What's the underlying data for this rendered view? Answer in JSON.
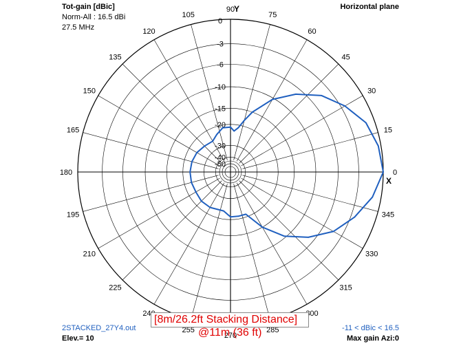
{
  "header": {
    "quantity": "Tot-gain [dBic]",
    "normalization": "Norm-All : 16.5 dBi",
    "frequency": "27.5 MHz",
    "plane": "Horizontal plane"
  },
  "footer": {
    "file": "2STACKED_27Y4.out",
    "elevation": "Elev.= 10",
    "range": "-11 < dBic < 16.5",
    "max_gain": "Max gain Azi:0"
  },
  "caption": {
    "line1": "[8m/26.2ft Stacking Distance]",
    "line2": "@11m (36 ft)"
  },
  "axis_labels": {
    "y": "Y",
    "x": "X"
  },
  "colors": {
    "grid": "#000000",
    "trace": "#1f5fbf",
    "caption": "#e00000"
  },
  "chart_data": {
    "type": "polar",
    "title": "Tot-gain [dBic]",
    "radial_ticks_db": [
      0,
      -3,
      -6,
      -10,
      -15,
      -20,
      -30,
      -40,
      -50
    ],
    "angle_ticks_deg": [
      0,
      15,
      30,
      45,
      60,
      75,
      90,
      105,
      120,
      135,
      150,
      165,
      180,
      195,
      210,
      225,
      240,
      255,
      270,
      285,
      300,
      315,
      330,
      345
    ],
    "grid": true,
    "series": [
      {
        "angle_deg": [
          0,
          10,
          20,
          30,
          40,
          50,
          60,
          70,
          75,
          80,
          85,
          90,
          100,
          110,
          120,
          135,
          150,
          165,
          180,
          195,
          210,
          225,
          240,
          260,
          270,
          280,
          290,
          300,
          310,
          320,
          330,
          340,
          350,
          360
        ],
        "gain_db": [
          0,
          -0.3,
          -1,
          -2.5,
          -4.3,
          -7,
          -10.3,
          -15,
          -18,
          -21,
          -22.5,
          -21,
          -21,
          -23,
          -25,
          -24.5,
          -23.5,
          -23,
          -22.8,
          -22.8,
          -23,
          -22.5,
          -22.6,
          -23.2,
          -21,
          -21,
          -21,
          -15,
          -10.3,
          -7,
          -4.3,
          -2.5,
          -1,
          0
        ]
      }
    ]
  }
}
